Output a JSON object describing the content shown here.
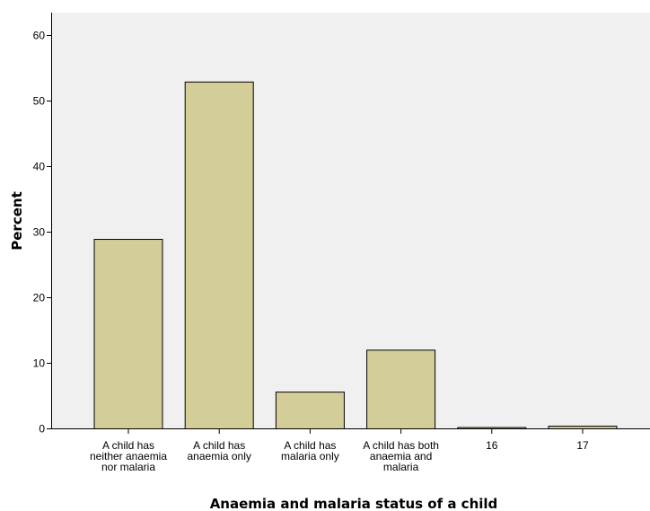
{
  "chart_data": {
    "type": "bar",
    "categories": [
      "A child has neither anaemia nor malaria",
      "A child has anaemia only",
      "A child has malaria only",
      "A child has both anaemia and malaria",
      "16",
      "17"
    ],
    "category_lines": [
      [
        "A child has",
        "neither anaemia",
        "nor malaria"
      ],
      [
        "A child has",
        "anaemia only"
      ],
      [
        "A child has",
        "malaria only"
      ],
      [
        "A child has both",
        "anaemia and",
        "malaria"
      ],
      [
        "16"
      ],
      [
        "17"
      ]
    ],
    "values": [
      28.9,
      52.9,
      5.6,
      12.0,
      0.2,
      0.4
    ],
    "xlabel": "Anaemia and malaria status of a child",
    "ylabel": "Percent",
    "ylim": [
      0,
      62
    ],
    "yticks": [
      0,
      10,
      20,
      30,
      40,
      50,
      60
    ],
    "grid": false,
    "colors": {
      "plot_background": "#f0f0f0",
      "bar_fill": "#d3ce97",
      "bar_stroke": "#000000"
    }
  }
}
